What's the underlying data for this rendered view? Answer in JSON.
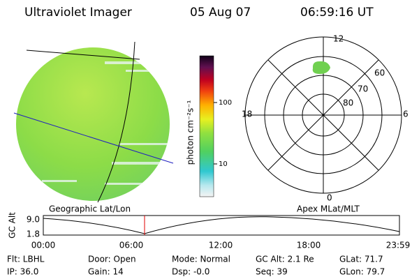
{
  "header": {
    "instrument": "Ultraviolet Imager",
    "date": "05 Aug 07",
    "time": "06:59:16 UT"
  },
  "colorbar": {
    "label": "photon cm⁻²s⁻¹",
    "ticks": [
      "100",
      "10"
    ]
  },
  "polar": {
    "mlt_labels": [
      "12",
      "18",
      "6",
      "0"
    ],
    "lat_labels": [
      "60",
      "70",
      "80"
    ]
  },
  "timeline": {
    "y_label": "GC Alt",
    "y_ticks": [
      "9.0",
      "1.8"
    ],
    "left_title": "Geographic Lat/Lon",
    "right_title": "Apex MLat/MLT",
    "x_ticks": [
      "00:00",
      "06:00",
      "12:00",
      "18:00",
      "23:59"
    ]
  },
  "info": [
    [
      "Flt: LBHL",
      "Door: Open",
      "Mode: Normal",
      "GC Alt: 2.1 Re",
      "GLat: 71.7"
    ],
    [
      "IP: 36.0",
      "Gain: 14",
      "Dsp: -0.0",
      "Seq: 39",
      "GLon: 79.7"
    ]
  ]
}
